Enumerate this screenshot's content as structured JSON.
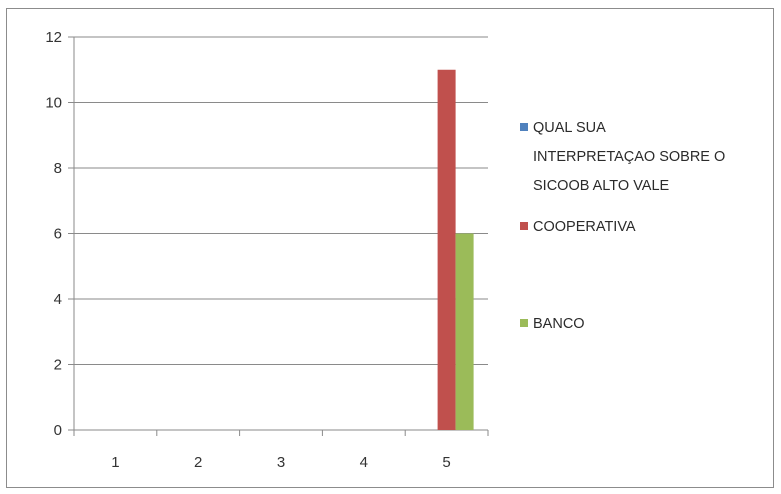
{
  "chart_data": {
    "type": "bar",
    "categories": [
      "1",
      "2",
      "3",
      "4",
      "5"
    ],
    "series": [
      {
        "name": "QUAL SUA INTERPRETAÇAO SOBRE O SICOOB ALTO VALE",
        "values": [
          0,
          0,
          0,
          0,
          0
        ],
        "color": "#4f81bd"
      },
      {
        "name": "COOPERATIVA",
        "values": [
          0,
          0,
          0,
          0,
          11
        ],
        "color": "#c0504d"
      },
      {
        "name": "BANCO",
        "values": [
          0,
          0,
          0,
          0,
          6
        ],
        "color": "#9bbb59"
      }
    ],
    "yticks": [
      0,
      2,
      4,
      6,
      8,
      10,
      12
    ],
    "ylim": [
      0,
      12
    ],
    "grid": true,
    "legend_position": "right",
    "legend_lines": [
      [
        "QUAL SUA",
        "INTERPRETAÇAO SOBRE O",
        "SICOOB ALTO VALE"
      ],
      [
        "COOPERATIVA"
      ],
      [
        "BANCO"
      ]
    ]
  }
}
